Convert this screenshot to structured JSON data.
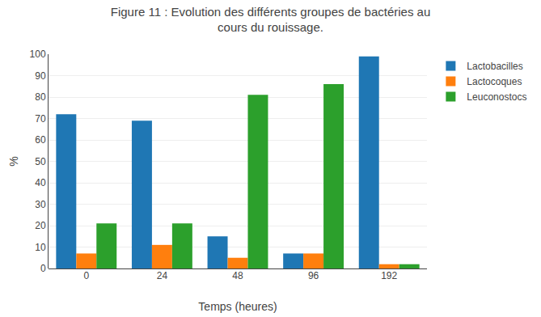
{
  "chart_data": {
    "type": "bar",
    "title": "Figure 11 : Evolution des différents groupes de bactéries au\ncours du rouissage.",
    "xlabel": "Temps (heures)",
    "ylabel": "%",
    "categories": [
      "0",
      "24",
      "48",
      "96",
      "192"
    ],
    "series": [
      {
        "name": "Lactobacilles",
        "values": [
          72,
          69,
          15,
          7,
          99
        ]
      },
      {
        "name": "Lactocoques",
        "values": [
          7,
          11,
          5,
          7,
          2
        ]
      },
      {
        "name": "Leuconostocs",
        "values": [
          21,
          21,
          81,
          86,
          2
        ]
      }
    ],
    "ylim": [
      0,
      100
    ],
    "yticks": [
      0,
      10,
      20,
      30,
      40,
      50,
      60,
      70,
      80,
      90,
      100
    ],
    "grid": true,
    "legend": "upper right"
  }
}
